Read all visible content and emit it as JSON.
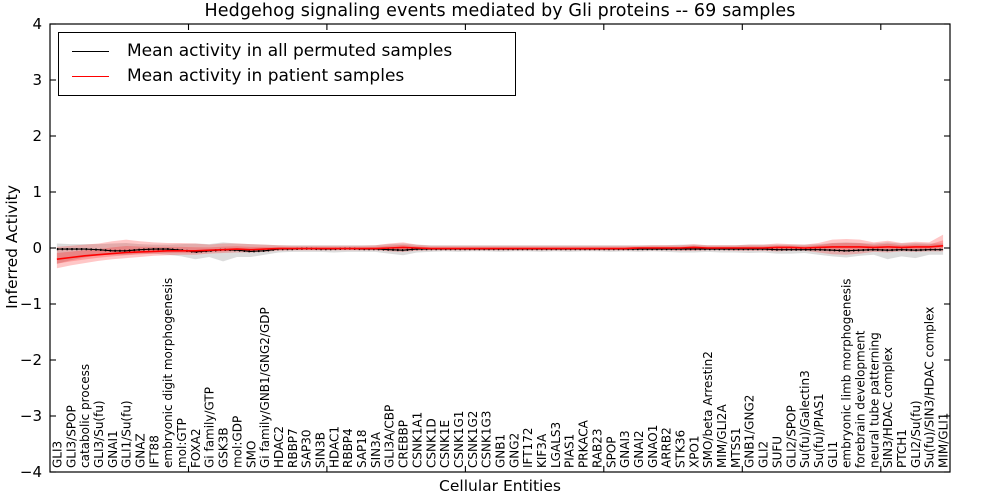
{
  "chart_data": {
    "type": "line",
    "title": "Hedgehog signaling events mediated by Gli proteins -- 69 samples",
    "xlabel": "Cellular Entities",
    "ylabel": "Inferred Activity",
    "ylim": [
      -4,
      4
    ],
    "yticks": [
      -4,
      -3,
      -2,
      -1,
      0,
      1,
      2,
      3,
      4
    ],
    "x_major_tick_interval": 10,
    "grid": false,
    "legend_position": "upper left",
    "categories": [
      "GLI3",
      "GLI3/SPOP",
      "catabolic process",
      "GLI3/Su(fu)",
      "GNAI1",
      "GLI1/Su(fu)",
      "GNAZ",
      "IFT88",
      "embryonic digit morphogenesis",
      "mol:GTP",
      "FOXA2",
      "Gi family/GTP",
      "GSK3B",
      "mol:GDP",
      "SMO",
      "Gi family/GNB1/GNG2/GDP",
      "HDAC2",
      "RBBP7",
      "SAP30",
      "SIN3B",
      "HDAC1",
      "RBBP4",
      "SAP18",
      "SIN3A",
      "GLI3A/CBP",
      "CREBBP",
      "CSNK1A1",
      "CSNK1D",
      "CSNK1E",
      "CSNK1G1",
      "CSNK1G2",
      "CSNK1G3",
      "GNB1",
      "GNG2",
      "IFT172",
      "KIF3A",
      "LGALS3",
      "PIAS1",
      "PRKACA",
      "RAB23",
      "SPOP",
      "GNAI3",
      "GNAI2",
      "GNAO1",
      "ARRB2",
      "STK36",
      "XPO1",
      "SMO/beta Arrestin2",
      "MIM/GLI2A",
      "MTSS1",
      "GNB1/GNG2",
      "GLI2",
      "SUFU",
      "GLI2/SPOP",
      "Su(fu)/Galectin3",
      "Su(fu)/PIAS1",
      "GLI1",
      "embryonic limb morphogenesis",
      "forebrain development",
      "neural tube patterning",
      "SIN3/HDAC complex",
      "PTCH1",
      "GLI2/Su(fu)",
      "Su(fu)/SIN3/HDAC complex",
      "MIM/GLI1"
    ],
    "series": [
      {
        "name": "Mean activity in all permuted samples",
        "color": "#000000",
        "band_color": "#d3d3d3",
        "mean": [
          -0.02,
          -0.02,
          -0.02,
          -0.03,
          -0.05,
          -0.05,
          -0.03,
          -0.02,
          -0.02,
          -0.04,
          -0.07,
          -0.05,
          -0.03,
          -0.04,
          -0.06,
          -0.05,
          -0.02,
          -0.02,
          -0.01,
          -0.02,
          -0.02,
          -0.01,
          -0.02,
          -0.02,
          -0.03,
          -0.04,
          -0.02,
          -0.02,
          -0.02,
          -0.02,
          -0.02,
          -0.02,
          -0.02,
          -0.02,
          -0.02,
          -0.02,
          -0.02,
          -0.02,
          -0.02,
          -0.02,
          -0.02,
          -0.02,
          -0.02,
          -0.02,
          -0.02,
          -0.02,
          -0.02,
          -0.02,
          -0.02,
          -0.02,
          -0.02,
          -0.02,
          -0.03,
          -0.03,
          -0.03,
          -0.03,
          -0.04,
          -0.05,
          -0.04,
          -0.03,
          -0.04,
          -0.03,
          -0.04,
          -0.03,
          -0.03
        ],
        "band_high": [
          0.08,
          0.07,
          0.07,
          0.07,
          0.08,
          0.09,
          0.07,
          0.06,
          0.06,
          0.07,
          0.08,
          0.07,
          0.1,
          0.08,
          0.07,
          0.06,
          0.05,
          0.05,
          0.05,
          0.05,
          0.05,
          0.05,
          0.05,
          0.05,
          0.07,
          0.08,
          0.06,
          0.05,
          0.05,
          0.05,
          0.05,
          0.05,
          0.05,
          0.05,
          0.05,
          0.05,
          0.05,
          0.05,
          0.05,
          0.05,
          0.05,
          0.05,
          0.05,
          0.05,
          0.05,
          0.06,
          0.06,
          0.05,
          0.05,
          0.05,
          0.06,
          0.06,
          0.06,
          0.06,
          0.06,
          0.07,
          0.09,
          0.1,
          0.09,
          0.08,
          0.1,
          0.08,
          0.09,
          0.08,
          0.08
        ],
        "band_low": [
          -0.28,
          -0.22,
          -0.17,
          -0.13,
          -0.12,
          -0.12,
          -0.1,
          -0.1,
          -0.12,
          -0.15,
          -0.2,
          -0.16,
          -0.24,
          -0.16,
          -0.16,
          -0.12,
          -0.08,
          -0.07,
          -0.07,
          -0.07,
          -0.08,
          -0.07,
          -0.07,
          -0.07,
          -0.1,
          -0.13,
          -0.08,
          -0.07,
          -0.06,
          -0.07,
          -0.06,
          -0.06,
          -0.07,
          -0.06,
          -0.06,
          -0.07,
          -0.06,
          -0.07,
          -0.06,
          -0.06,
          -0.07,
          -0.06,
          -0.07,
          -0.06,
          -0.07,
          -0.08,
          -0.08,
          -0.07,
          -0.08,
          -0.08,
          -0.09,
          -0.08,
          -0.1,
          -0.1,
          -0.09,
          -0.12,
          -0.15,
          -0.17,
          -0.14,
          -0.12,
          -0.2,
          -0.15,
          -0.18,
          -0.12,
          -0.12
        ]
      },
      {
        "name": "Mean activity in patient samples",
        "color": "#ff0000",
        "band_color": "rgba(255,0,0,0.25)",
        "mean": [
          -0.2,
          -0.17,
          -0.14,
          -0.12,
          -0.1,
          -0.08,
          -0.07,
          -0.06,
          -0.05,
          -0.05,
          -0.05,
          -0.04,
          -0.03,
          -0.02,
          -0.03,
          -0.02,
          -0.01,
          -0.01,
          -0.01,
          -0.01,
          -0.01,
          -0.01,
          -0.01,
          -0.01,
          0.0,
          0.01,
          0.0,
          -0.01,
          -0.01,
          -0.01,
          -0.01,
          -0.01,
          -0.01,
          -0.01,
          -0.01,
          -0.01,
          -0.01,
          -0.01,
          -0.01,
          -0.01,
          -0.01,
          -0.01,
          0.0,
          0.0,
          0.0,
          0.0,
          0.01,
          0.0,
          0.0,
          0.0,
          0.0,
          0.0,
          0.01,
          0.01,
          0.0,
          0.01,
          0.02,
          0.02,
          0.02,
          0.01,
          0.02,
          0.01,
          0.02,
          0.02,
          0.04
        ],
        "band_high": [
          0.02,
          0.04,
          0.06,
          0.08,
          0.12,
          0.15,
          0.12,
          0.1,
          0.09,
          0.09,
          0.08,
          0.06,
          0.08,
          0.08,
          0.07,
          0.06,
          0.05,
          0.04,
          0.04,
          0.04,
          0.04,
          0.04,
          0.04,
          0.05,
          0.08,
          0.1,
          0.06,
          0.04,
          0.04,
          0.04,
          0.04,
          0.04,
          0.04,
          0.04,
          0.04,
          0.04,
          0.04,
          0.04,
          0.04,
          0.04,
          0.04,
          0.04,
          0.04,
          0.05,
          0.05,
          0.05,
          0.07,
          0.05,
          0.05,
          0.05,
          0.06,
          0.06,
          0.08,
          0.07,
          0.06,
          0.09,
          0.15,
          0.16,
          0.15,
          0.1,
          0.13,
          0.09,
          0.11,
          0.1,
          0.24
        ],
        "band_low": [
          -0.36,
          -0.31,
          -0.27,
          -0.23,
          -0.2,
          -0.18,
          -0.16,
          -0.14,
          -0.13,
          -0.12,
          -0.12,
          -0.1,
          -0.09,
          -0.08,
          -0.08,
          -0.07,
          -0.05,
          -0.04,
          -0.04,
          -0.04,
          -0.04,
          -0.04,
          -0.04,
          -0.04,
          -0.06,
          -0.07,
          -0.05,
          -0.04,
          -0.04,
          -0.04,
          -0.04,
          -0.04,
          -0.04,
          -0.04,
          -0.04,
          -0.04,
          -0.04,
          -0.04,
          -0.04,
          -0.04,
          -0.04,
          -0.04,
          -0.04,
          -0.04,
          -0.04,
          -0.05,
          -0.05,
          -0.04,
          -0.04,
          -0.05,
          -0.05,
          -0.05,
          -0.06,
          -0.05,
          -0.05,
          -0.08,
          -0.11,
          -0.12,
          -0.1,
          -0.07,
          -0.08,
          -0.06,
          -0.07,
          -0.06,
          -0.06
        ]
      }
    ]
  }
}
